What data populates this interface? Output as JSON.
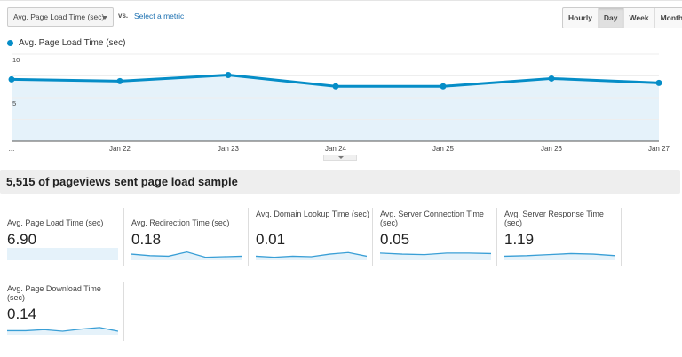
{
  "toolbar": {
    "metric_select": "Avg. Page Load Time (sec)",
    "vs_label": "vs.",
    "select_metric_link": "Select a metric",
    "ranges": [
      {
        "label": "Hourly",
        "active": false
      },
      {
        "label": "Day",
        "active": true
      },
      {
        "label": "Week",
        "active": false
      },
      {
        "label": "Month",
        "active": false
      }
    ]
  },
  "legend": {
    "label": "Avg. Page Load Time (sec)",
    "color": "#058dc7"
  },
  "chart_data": {
    "type": "area",
    "title": "",
    "series": [
      {
        "name": "Avg. Page Load Time (sec)",
        "values": [
          7.1,
          6.9,
          7.6,
          6.3,
          6.3,
          7.2,
          6.7
        ]
      }
    ],
    "x": [
      "...",
      "Jan 22",
      "Jan 23",
      "Jan 24",
      "Jan 25",
      "Jan 26",
      "Jan 27"
    ],
    "yticks": [
      "10",
      "5"
    ],
    "ylim": [
      0,
      10
    ],
    "grid": true,
    "line_color": "#058dc7",
    "fill_color": "#e5f2fa"
  },
  "sample": {
    "text": "5,515 of pageviews sent page load sample"
  },
  "cards": [
    {
      "label": "Avg. Page Load Time (sec)",
      "value": "6.90",
      "spark": [
        6.9,
        7.0,
        6.7,
        6.7,
        6.9,
        6.8
      ]
    },
    {
      "label": "Avg. Redirection Time (sec)",
      "value": "0.18",
      "spark": [
        0.5,
        0.35,
        0.3,
        0.7,
        0.2,
        0.25,
        0.3
      ]
    },
    {
      "label": "Avg. Domain Lookup Time (sec)",
      "value": "0.01",
      "spark": [
        0.3,
        0.2,
        0.3,
        0.25,
        0.5,
        0.65,
        0.3
      ]
    },
    {
      "label": "Avg. Server Connection Time (sec)",
      "value": "0.05",
      "spark": [
        0.6,
        0.5,
        0.45,
        0.6,
        0.6,
        0.55
      ]
    },
    {
      "label": "Avg. Server Response Time (sec)",
      "value": "1.19",
      "spark": [
        0.3,
        0.35,
        0.45,
        0.55,
        0.5,
        0.35
      ]
    },
    {
      "label": "Avg. Page Download Time (sec)",
      "value": "0.14",
      "spark": [
        0.3,
        0.3,
        0.4,
        0.25,
        0.45,
        0.6,
        0.25
      ]
    }
  ]
}
